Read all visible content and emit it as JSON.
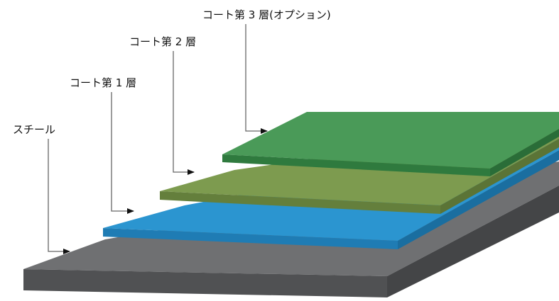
{
  "layers": [
    {
      "label": "スチール"
    },
    {
      "label": "コート第 1 層"
    },
    {
      "label": "コート第 2 層"
    },
    {
      "label": "コート第 3 層(オプション)"
    }
  ]
}
